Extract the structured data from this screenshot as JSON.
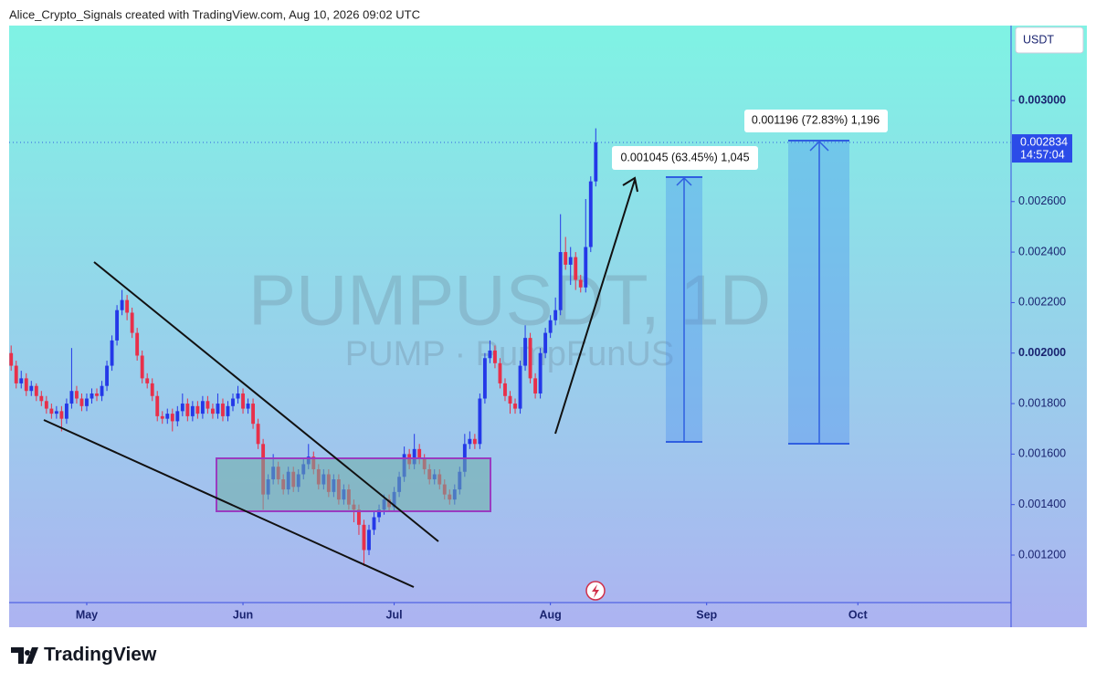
{
  "header": {
    "credit": "Alice_Crypto_Signals created with TradingView.com, Aug 10, 2026 09:02 UTC"
  },
  "chart_data": {
    "type": "candlestick",
    "title": "PUMPUSDT, 1D",
    "subtitle": "PUMP · PumpFunUS",
    "currency": "USDT",
    "up_color": "#2438e8",
    "down_color": "#e8304a",
    "xlim": [
      -0.4,
      198.4
    ],
    "xticks": [
      {
        "value": 15,
        "label": "May"
      },
      {
        "value": 46,
        "label": "Jun"
      },
      {
        "value": 76,
        "label": "Jul"
      },
      {
        "value": 107,
        "label": "Aug"
      },
      {
        "value": 138,
        "label": "Sep"
      },
      {
        "value": 168,
        "label": "Oct"
      }
    ],
    "ylim": [
      0.001012,
      0.003297
    ],
    "yticks": [
      {
        "value": 0.0012,
        "label": "0.001200"
      },
      {
        "value": 0.0014,
        "label": "0.001400"
      },
      {
        "value": 0.0016,
        "label": "0.001600"
      },
      {
        "value": 0.0018,
        "label": "0.001800"
      },
      {
        "value": 0.002,
        "label": "0.002000"
      },
      {
        "value": 0.0022,
        "label": "0.002200"
      },
      {
        "value": 0.0024,
        "label": "0.002400"
      },
      {
        "value": 0.0026,
        "label": "0.002600"
      },
      {
        "value": 0.003,
        "label": "0.003000"
      }
    ],
    "last_price": 0.002834,
    "countdown": "14:57:04",
    "annotations": [
      "0.001045 (63.45%) 1,045",
      "0.001196 (72.83%) 1,196"
    ],
    "values": [
      [
        0.002,
        0.00203,
        0.00193,
        0.00195
      ],
      [
        0.00195,
        0.00197,
        0.00186,
        0.00188
      ],
      [
        0.00188,
        0.00193,
        0.00186,
        0.0019
      ],
      [
        0.0019,
        0.00192,
        0.00183,
        0.00185
      ],
      [
        0.00185,
        0.00189,
        0.00183,
        0.00187
      ],
      [
        0.00187,
        0.00188,
        0.00181,
        0.00183
      ],
      [
        0.00183,
        0.00185,
        0.00179,
        0.00181
      ],
      [
        0.00181,
        0.00183,
        0.00176,
        0.00178
      ],
      [
        0.00178,
        0.0018,
        0.00174,
        0.00176
      ],
      [
        0.00176,
        0.00179,
        0.00174,
        0.00177
      ],
      [
        0.00177,
        0.00179,
        0.00169,
        0.00174
      ],
      [
        0.00174,
        0.00182,
        0.00172,
        0.0018
      ],
      [
        0.0018,
        0.00202,
        0.00178,
        0.00185
      ],
      [
        0.00185,
        0.00187,
        0.0018,
        0.00182
      ],
      [
        0.00182,
        0.00184,
        0.00177,
        0.00179
      ],
      [
        0.00179,
        0.00184,
        0.00177,
        0.00182
      ],
      [
        0.00182,
        0.00186,
        0.0018,
        0.00184
      ],
      [
        0.00184,
        0.00186,
        0.00181,
        0.00183
      ],
      [
        0.00183,
        0.00189,
        0.00181,
        0.00187
      ],
      [
        0.00187,
        0.00197,
        0.00185,
        0.00195
      ],
      [
        0.00195,
        0.00207,
        0.00193,
        0.00205
      ],
      [
        0.00205,
        0.00219,
        0.00203,
        0.00217
      ],
      [
        0.00217,
        0.00225,
        0.00215,
        0.00221
      ],
      [
        0.00221,
        0.00223,
        0.00213,
        0.00216
      ],
      [
        0.00216,
        0.00218,
        0.00206,
        0.00208
      ],
      [
        0.00208,
        0.0021,
        0.00197,
        0.00199
      ],
      [
        0.00199,
        0.00201,
        0.00188,
        0.0019
      ],
      [
        0.0019,
        0.00192,
        0.00186,
        0.00188
      ],
      [
        0.00188,
        0.0019,
        0.00181,
        0.00183
      ],
      [
        0.00183,
        0.00185,
        0.00173,
        0.00175
      ],
      [
        0.00175,
        0.00177,
        0.00172,
        0.00174
      ],
      [
        0.00174,
        0.00178,
        0.00172,
        0.00176
      ],
      [
        0.00176,
        0.00178,
        0.00169,
        0.00173
      ],
      [
        0.00173,
        0.00179,
        0.00171,
        0.00177
      ],
      [
        0.00177,
        0.00184,
        0.00175,
        0.0018
      ],
      [
        0.0018,
        0.00182,
        0.00173,
        0.00175
      ],
      [
        0.00175,
        0.00181,
        0.00173,
        0.00179
      ],
      [
        0.00179,
        0.00181,
        0.00174,
        0.00176
      ],
      [
        0.00176,
        0.00183,
        0.00174,
        0.00181
      ],
      [
        0.00181,
        0.00183,
        0.00176,
        0.00178
      ],
      [
        0.00178,
        0.0018,
        0.00174,
        0.00176
      ],
      [
        0.00176,
        0.00184,
        0.00174,
        0.0018
      ],
      [
        0.0018,
        0.00182,
        0.00173,
        0.00175
      ],
      [
        0.00175,
        0.00181,
        0.00173,
        0.00179
      ],
      [
        0.00179,
        0.00184,
        0.00177,
        0.00182
      ],
      [
        0.00182,
        0.00187,
        0.0018,
        0.00184
      ],
      [
        0.00184,
        0.00186,
        0.00176,
        0.00178
      ],
      [
        0.00178,
        0.00182,
        0.00176,
        0.0018
      ],
      [
        0.0018,
        0.00182,
        0.0017,
        0.00172
      ],
      [
        0.00172,
        0.00174,
        0.00162,
        0.00164
      ],
      [
        0.00164,
        0.00166,
        0.00138,
        0.00144
      ],
      [
        0.00144,
        0.00152,
        0.00142,
        0.0015
      ],
      [
        0.0015,
        0.0016,
        0.00148,
        0.00155
      ],
      [
        0.00155,
        0.00157,
        0.00148,
        0.0015
      ],
      [
        0.0015,
        0.00152,
        0.00144,
        0.00146
      ],
      [
        0.00146,
        0.00155,
        0.00144,
        0.00153
      ],
      [
        0.00153,
        0.00155,
        0.00145,
        0.00147
      ],
      [
        0.00147,
        0.00154,
        0.00145,
        0.00152
      ],
      [
        0.00152,
        0.00158,
        0.0015,
        0.00156
      ],
      [
        0.00156,
        0.00164,
        0.00154,
        0.00159
      ],
      [
        0.00159,
        0.00161,
        0.00152,
        0.00154
      ],
      [
        0.00154,
        0.00156,
        0.00146,
        0.00148
      ],
      [
        0.00148,
        0.00154,
        0.00146,
        0.00152
      ],
      [
        0.00152,
        0.00154,
        0.00143,
        0.00145
      ],
      [
        0.00145,
        0.00152,
        0.00143,
        0.0015
      ],
      [
        0.0015,
        0.00152,
        0.0014,
        0.00142
      ],
      [
        0.00142,
        0.00148,
        0.0014,
        0.00146
      ],
      [
        0.00146,
        0.00148,
        0.00138,
        0.0014
      ],
      [
        0.0014,
        0.00142,
        0.00133,
        0.00138
      ],
      [
        0.00138,
        0.0014,
        0.00128,
        0.00132
      ],
      [
        0.00132,
        0.00134,
        0.001157,
        0.00122
      ],
      [
        0.00122,
        0.00132,
        0.0012,
        0.0013
      ],
      [
        0.0013,
        0.00137,
        0.00128,
        0.00135
      ],
      [
        0.00135,
        0.0014,
        0.00133,
        0.00138
      ],
      [
        0.00138,
        0.00144,
        0.00136,
        0.00142
      ],
      [
        0.00142,
        0.00144,
        0.00137,
        0.00139
      ],
      [
        0.00139,
        0.00147,
        0.00137,
        0.00145
      ],
      [
        0.00145,
        0.00153,
        0.00143,
        0.00151
      ],
      [
        0.00151,
        0.00163,
        0.00149,
        0.0016
      ],
      [
        0.0016,
        0.00162,
        0.00154,
        0.00156
      ],
      [
        0.00156,
        0.00168,
        0.00154,
        0.00162
      ],
      [
        0.00162,
        0.00164,
        0.00156,
        0.00158
      ],
      [
        0.00158,
        0.0016,
        0.00152,
        0.00154
      ],
      [
        0.00154,
        0.00156,
        0.00148,
        0.0015
      ],
      [
        0.0015,
        0.00154,
        0.00148,
        0.00152
      ],
      [
        0.00152,
        0.00154,
        0.00146,
        0.00148
      ],
      [
        0.00148,
        0.0015,
        0.00142,
        0.00144
      ],
      [
        0.00144,
        0.00146,
        0.0014,
        0.00142
      ],
      [
        0.00142,
        0.00148,
        0.0014,
        0.00146
      ],
      [
        0.00146,
        0.00155,
        0.00144,
        0.00153
      ],
      [
        0.00153,
        0.00168,
        0.00151,
        0.00164
      ],
      [
        0.00164,
        0.00169,
        0.00162,
        0.00166
      ],
      [
        0.00166,
        0.00168,
        0.00162,
        0.00164
      ],
      [
        0.00164,
        0.00184,
        0.00162,
        0.00182
      ],
      [
        0.00182,
        0.002,
        0.0018,
        0.00198
      ],
      [
        0.00198,
        0.00205,
        0.00196,
        0.00201
      ],
      [
        0.00201,
        0.00203,
        0.00194,
        0.00196
      ],
      [
        0.00196,
        0.00198,
        0.00186,
        0.00188
      ],
      [
        0.00188,
        0.0019,
        0.00181,
        0.00183
      ],
      [
        0.00183,
        0.00185,
        0.00176,
        0.0018
      ],
      [
        0.0018,
        0.00182,
        0.00176,
        0.00178
      ],
      [
        0.00178,
        0.00197,
        0.00176,
        0.00195
      ],
      [
        0.00195,
        0.00211,
        0.00193,
        0.00206
      ],
      [
        0.00206,
        0.00208,
        0.00188,
        0.0019
      ],
      [
        0.0019,
        0.00192,
        0.00182,
        0.00184
      ],
      [
        0.00184,
        0.00202,
        0.00182,
        0.002
      ],
      [
        0.002,
        0.0021,
        0.00198,
        0.00208
      ],
      [
        0.00208,
        0.00215,
        0.00206,
        0.00213
      ],
      [
        0.00213,
        0.00222,
        0.00211,
        0.00217
      ],
      [
        0.00217,
        0.00255,
        0.00215,
        0.0024
      ],
      [
        0.0024,
        0.00246,
        0.00233,
        0.00235
      ],
      [
        0.00235,
        0.00242,
        0.00227,
        0.00238
      ],
      [
        0.00238,
        0.0024,
        0.00225,
        0.00229
      ],
      [
        0.00229,
        0.00231,
        0.00224,
        0.00226
      ],
      [
        0.00226,
        0.00261,
        0.00224,
        0.00242
      ],
      [
        0.00242,
        0.0027,
        0.0024,
        0.00268
      ],
      [
        0.00268,
        0.00289,
        0.00266,
        0.002834
      ]
    ]
  },
  "footer": {
    "logo": "TradingView"
  }
}
